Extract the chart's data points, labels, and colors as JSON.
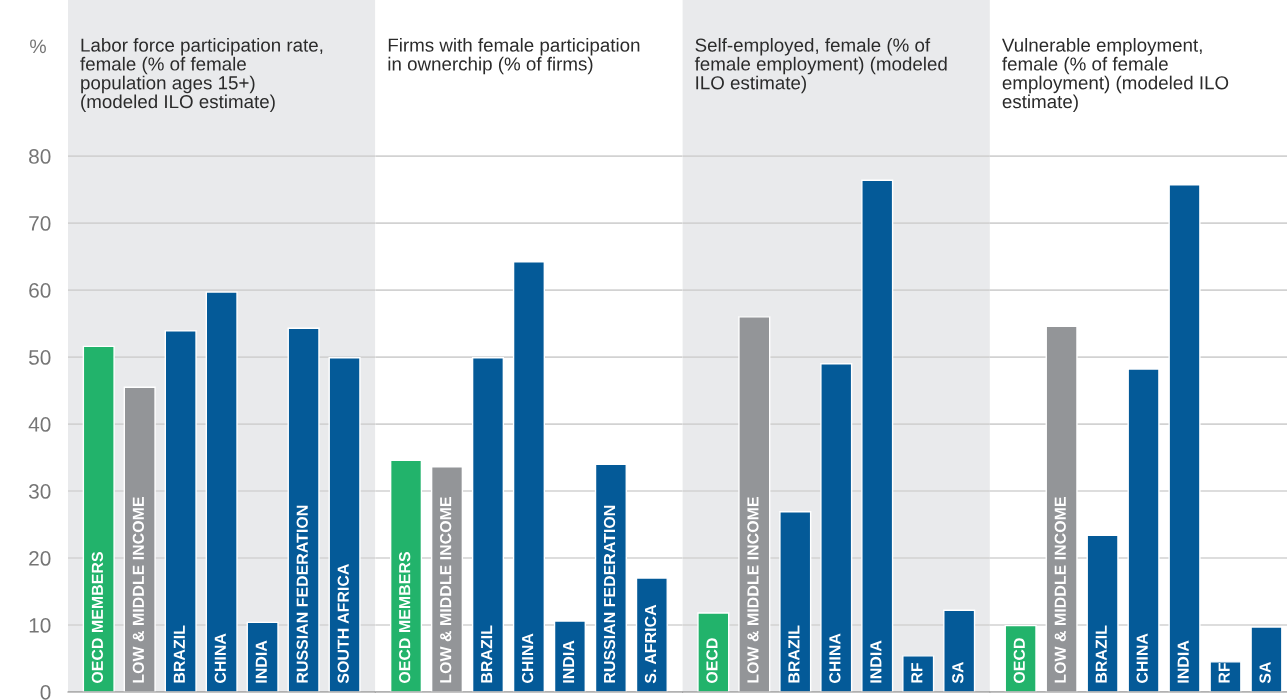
{
  "chart_data": [
    {
      "type": "bar",
      "title": "Labor force participation rate, female (% of female population ages 15+) (modeled ILO estimate)",
      "ylabel": "%",
      "categories": [
        "OECD MEMBERS",
        "LOW & MIDDLE INCOME",
        "BRAZIL",
        "CHINA",
        "INDIA",
        "RUSSIAN FEDERATION",
        "SOUTH AFRICA"
      ],
      "values": [
        51.6,
        45.5,
        53.9,
        59.7,
        10.4,
        54.3,
        49.9
      ],
      "colors": [
        "#22b36b",
        "#939598",
        "#045a98",
        "#045a98",
        "#045a98",
        "#045a98",
        "#045a98"
      ],
      "ylim": [
        0,
        103.3
      ],
      "yticks": [
        0,
        10,
        20,
        30,
        40,
        50,
        60,
        70,
        80
      ],
      "grid": "y",
      "tick_labels": "y"
    },
    {
      "type": "bar",
      "title": "Firms with female participation in ownerchip (% of firms)",
      "categories": [
        "OECD MEMBERS",
        "LOW & MIDDLE INCOME",
        "BRAZIL",
        "CHINA",
        "INDIA",
        "RUSSIAN FEDERATION",
        "S. AFRICA"
      ],
      "values": [
        34.6,
        33.6,
        49.9,
        64.2,
        10.6,
        34.0,
        17.0
      ],
      "colors": [
        "#22b36b",
        "#939598",
        "#045a98",
        "#045a98",
        "#045a98",
        "#045a98",
        "#045a98"
      ],
      "ylim": [
        0,
        103.3
      ],
      "yticks": [
        0,
        10,
        20,
        30,
        40,
        50,
        60,
        70,
        80
      ],
      "grid": "y",
      "tick_labels": false
    },
    {
      "type": "bar",
      "title": "Self-employed, female (% of female employment) (modeled ILO estimate)",
      "categories": [
        "OECD",
        "LOW & MIDDLE INCOME",
        "BRAZIL",
        "CHINA",
        "INDIA",
        "RF",
        "SA"
      ],
      "values": [
        11.8,
        56.0,
        26.9,
        49.0,
        76.4,
        5.4,
        12.2
      ],
      "colors": [
        "#22b36b",
        "#939598",
        "#045a98",
        "#045a98",
        "#045a98",
        "#045a98",
        "#045a98"
      ],
      "ylim": [
        0,
        103.3
      ],
      "yticks": [
        0,
        10,
        20,
        30,
        40,
        50,
        60,
        70,
        80
      ],
      "grid": "y",
      "tick_labels": false
    },
    {
      "type": "bar",
      "title": "Vulnerable employment, female (% of female employment) (modeled ILO estimate)",
      "categories": [
        "OECD",
        "LOW & MIDDLE INCOME",
        "BRAZIL",
        "CHINA",
        "INDIA",
        "RF",
        "SA"
      ],
      "values": [
        9.9,
        54.6,
        23.4,
        48.2,
        75.7,
        4.5,
        9.7
      ],
      "colors": [
        "#22b36b",
        "#939598",
        "#045a98",
        "#045a98",
        "#045a98",
        "#045a98",
        "#045a98"
      ],
      "ylim": [
        0,
        103.3
      ],
      "yticks": [
        0,
        10,
        20,
        30,
        40,
        50,
        60,
        70,
        80
      ],
      "grid": "y",
      "tick_labels": false
    }
  ]
}
